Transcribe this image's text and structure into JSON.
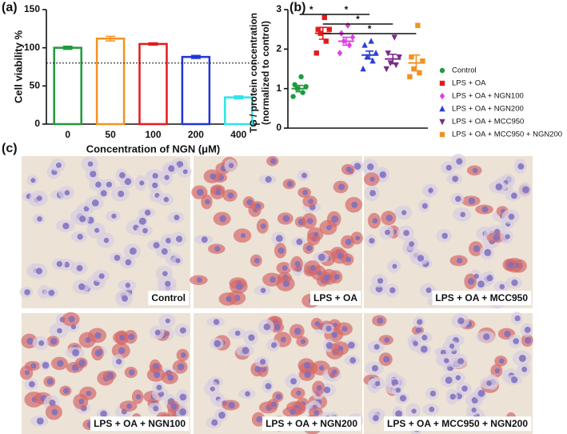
{
  "panel_labels": [
    "(a)",
    "(b)",
    "(c)"
  ],
  "chart_data": [
    {
      "type": "bar",
      "title_y": "Cell viability %",
      "title_x": "Concentration of NGN (μM)",
      "categories": [
        "0",
        "50",
        "100",
        "200",
        "400"
      ],
      "values": [
        100,
        112,
        105,
        88,
        35
      ],
      "errors": [
        2,
        3,
        1.5,
        2,
        2
      ],
      "colors": [
        "#1f9a3c",
        "#f39222",
        "#e41a1c",
        "#1f35d6",
        "#2fe3e8"
      ],
      "ylim": [
        0,
        150
      ],
      "yticks": [
        0,
        50,
        100,
        150
      ],
      "reference_line": 80
    },
    {
      "type": "dotplot",
      "title_y": [
        "TG / protein concentration",
        "(normalized to control)"
      ],
      "ylim": [
        0,
        3
      ],
      "yticks": [
        0,
        1,
        2,
        3
      ],
      "series": [
        {
          "name": "Control",
          "color": "#1f9a3c",
          "marker": "circle",
          "values": [
            0.8,
            0.9,
            1.0,
            1.05,
            1.1,
            1.3
          ],
          "mean": 1.0,
          "sem": 0.08
        },
        {
          "name": "LPS + OA",
          "color": "#e41a1c",
          "marker": "square",
          "values": [
            1.9,
            2.2,
            2.4,
            2.5,
            2.5,
            2.8
          ],
          "mean": 2.4,
          "sem": 0.15
        },
        {
          "name": "LPS + OA + NGN100",
          "color": "#e040e0",
          "marker": "diamond",
          "values": [
            1.9,
            2.1,
            2.2,
            2.3,
            2.4,
            2.6
          ],
          "mean": 2.2,
          "sem": 0.1
        },
        {
          "name": "LPS + OA + NGN200",
          "color": "#2b3fd6",
          "marker": "triangle",
          "values": [
            1.5,
            1.7,
            1.8,
            1.9,
            2.1,
            2.2
          ],
          "mean": 1.85,
          "sem": 0.1
        },
        {
          "name": "LPS + OA + MCC950",
          "color": "#7b2a8a",
          "marker": "triangle-down",
          "values": [
            1.5,
            1.6,
            1.65,
            1.8,
            1.9,
            2.3
          ],
          "mean": 1.75,
          "sem": 0.12
        },
        {
          "name": "LPS + OA + MCC950 + NGN200",
          "color": "#f39222",
          "marker": "square",
          "values": [
            1.3,
            1.4,
            1.5,
            1.7,
            1.8,
            2.6
          ],
          "mean": 1.65,
          "sem": 0.2
        }
      ],
      "significance": [
        {
          "label": "*",
          "pair": [
            "Control",
            "LPS + OA"
          ]
        },
        {
          "label": "*",
          "pair": [
            "LPS + OA",
            "LPS + OA + NGN200"
          ]
        },
        {
          "label": "*",
          "pair": [
            "LPS + OA",
            "LPS + OA + MCC950"
          ]
        },
        {
          "label": "*",
          "pair": [
            "LPS + OA",
            "LPS + OA + MCC950 + NGN200"
          ]
        }
      ]
    }
  ],
  "micrographs": [
    "Control",
    "LPS + OA",
    "LPS + OA + MCC950",
    "LPS + OA + NGN100",
    "LPS + OA + NGN200",
    "LPS + OA + MCC950 + NGN200"
  ]
}
